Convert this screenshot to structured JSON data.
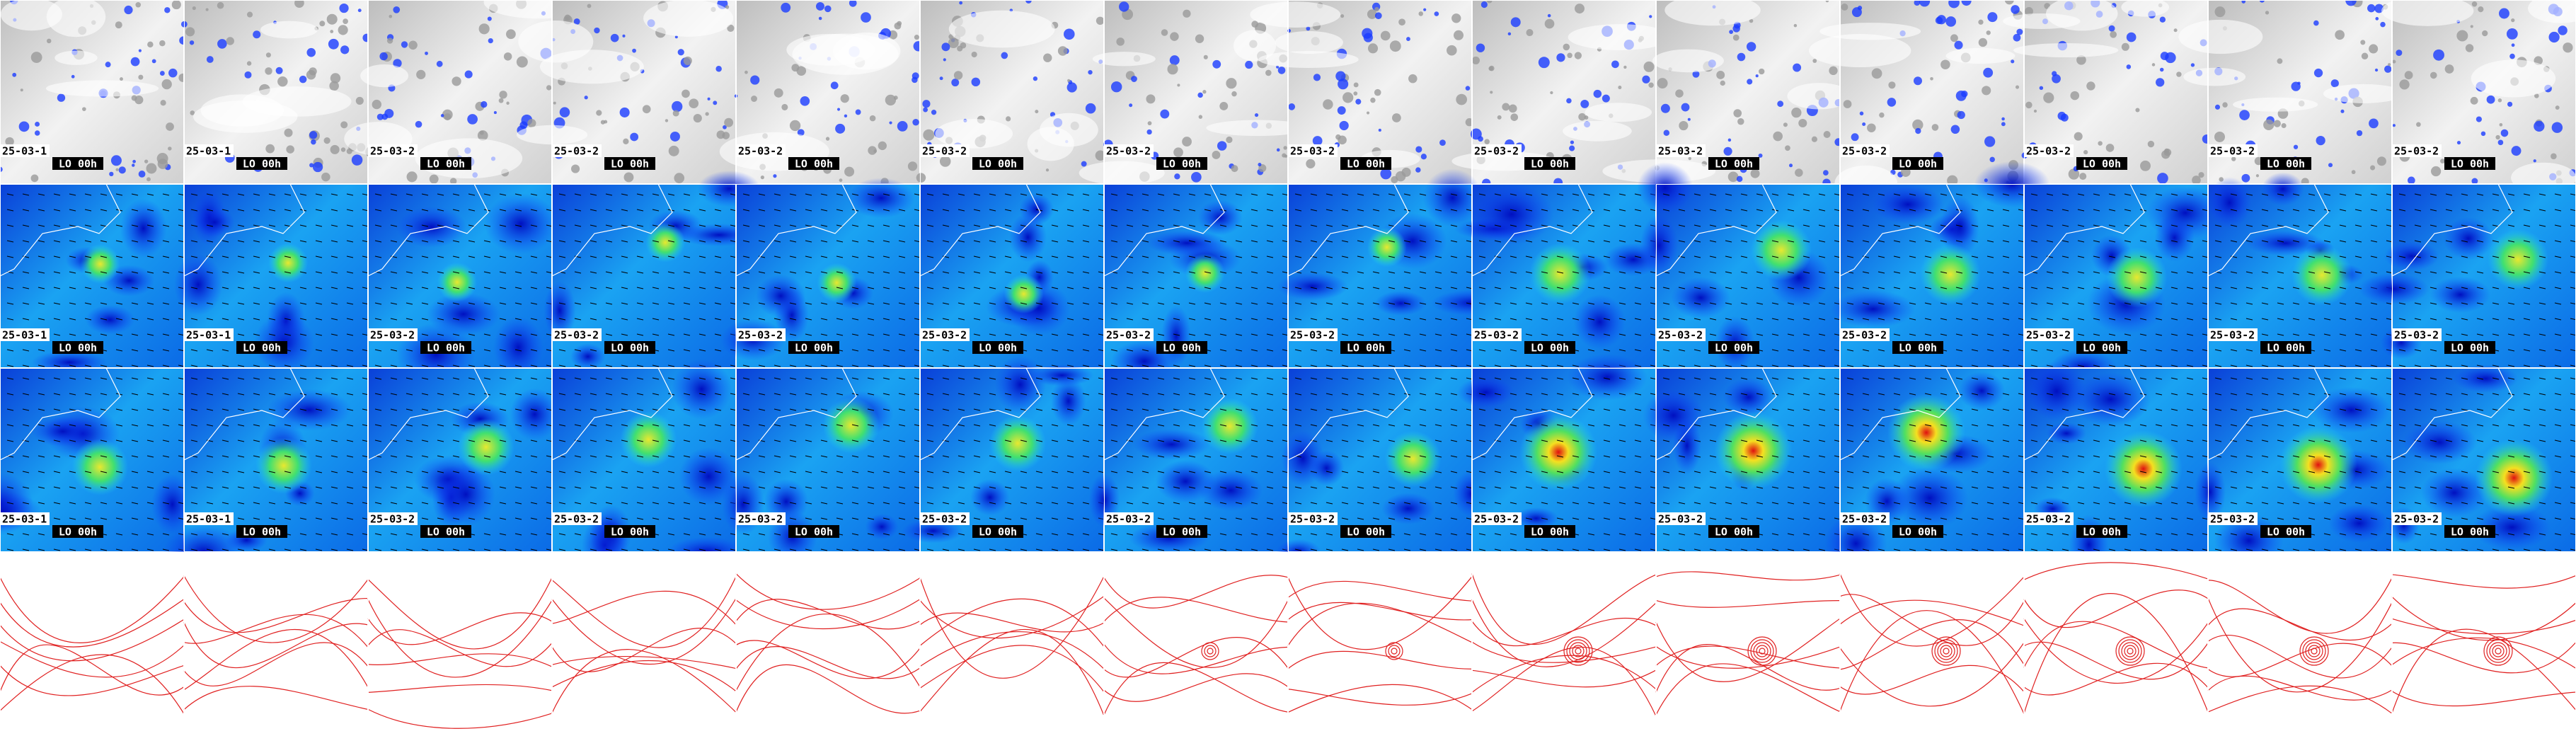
{
  "panels": {
    "rows": [
      {
        "dates": [
          "25-03-1",
          "25-03-1",
          "25-03-2",
          "25-03-2",
          "25-03-2",
          "25-03-2",
          "25-03-2",
          "25-03-2",
          "25-03-2",
          "25-03-2",
          "25-03-2",
          "25-03-2",
          "25-03-2",
          "25-03-2"
        ],
        "runs": [
          "LO 00h",
          "LO 00h",
          "LO 00h",
          "LO 00h",
          "LO 00h",
          "LO 00h",
          "LO 00h",
          "LO 00h",
          "LO 00h",
          "LO 00h",
          "LO 00h",
          "LO 00h",
          "LO 00h",
          "LO 00h"
        ]
      },
      {
        "dates": [
          "25-03-1",
          "25-03-1",
          "25-03-2",
          "25-03-2",
          "25-03-2",
          "25-03-2",
          "25-03-2",
          "25-03-2",
          "25-03-2",
          "25-03-2",
          "25-03-2",
          "25-03-2",
          "25-03-2",
          "25-03-2"
        ],
        "runs": [
          "LO 00h",
          "LO 00h",
          "LO 00h",
          "LO 00h",
          "LO 00h",
          "LO 00h",
          "LO 00h",
          "LO 00h",
          "LO 00h",
          "LO 00h",
          "LO 00h",
          "LO 00h",
          "LO 00h",
          "LO 00h"
        ]
      },
      {
        "dates": [
          "25-03-1",
          "25-03-1",
          "25-03-2",
          "25-03-2",
          "25-03-2",
          "25-03-2",
          "25-03-2",
          "25-03-2",
          "25-03-2",
          "25-03-2",
          "25-03-2",
          "25-03-2",
          "25-03-2",
          "25-03-2"
        ],
        "runs": [
          "LO 00h",
          "LO 00h",
          "LO 00h",
          "LO 00h",
          "LO 00h",
          "LO 00h",
          "LO 00h",
          "LO 00h",
          "LO 00h",
          "LO 00h",
          "LO 00h",
          "LO 00h",
          "LO 00h",
          "LO 00h"
        ]
      }
    ]
  }
}
